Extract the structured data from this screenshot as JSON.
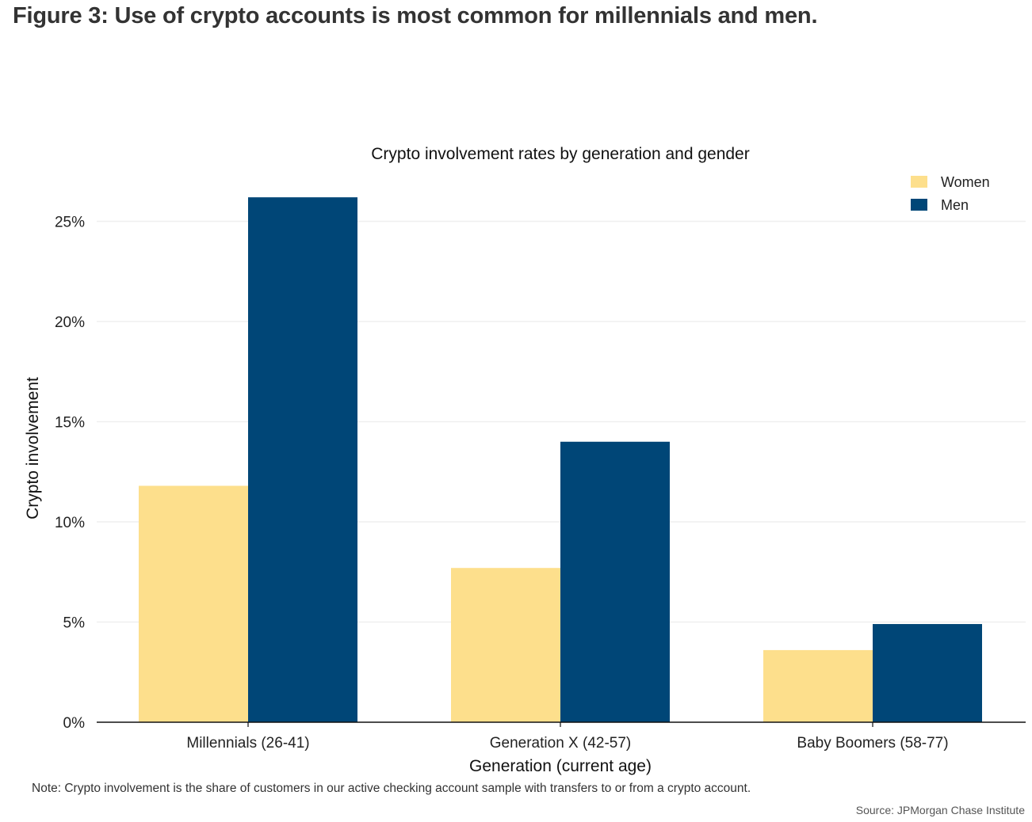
{
  "figure": {
    "title": "Figure 3: Use of crypto accounts is most common for millennials and men.",
    "note": "Note: Crypto involvement is the share of customers in our active checking account sample with transfers to or from a crypto account.",
    "source": "Source: JPMorgan Chase Institute"
  },
  "colors": {
    "women": "#FDDF8C",
    "men": "#004677",
    "grid": "#EFEFEF",
    "axis": "#111111"
  },
  "chart_data": {
    "type": "bar",
    "title": "Crypto involvement rates by generation and gender",
    "xlabel": "Generation (current age)",
    "ylabel": "Crypto involvement",
    "categories": [
      "Millennials (26-41)",
      "Generation X (42-57)",
      "Baby Boomers (58-77)"
    ],
    "series": [
      {
        "name": "Women",
        "color": "#FDDF8C",
        "values": [
          11.8,
          7.7,
          3.6
        ]
      },
      {
        "name": "Men",
        "color": "#004677",
        "values": [
          26.2,
          14.0,
          4.9
        ]
      }
    ],
    "yticks": [
      0,
      5,
      10,
      15,
      20,
      25
    ],
    "ytick_labels": [
      "0%",
      "5%",
      "10%",
      "15%",
      "20%",
      "25%"
    ],
    "ylim": [
      0,
      27
    ],
    "unit": "%",
    "grid": true,
    "legend": {
      "position": "top-right",
      "entries": [
        "Women",
        "Men"
      ]
    }
  }
}
